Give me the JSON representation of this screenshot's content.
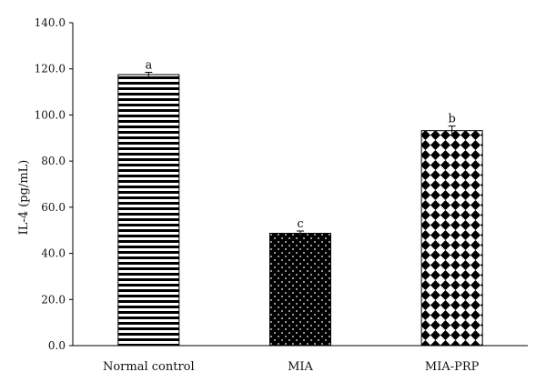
{
  "chart_data": {
    "type": "bar",
    "title": "",
    "xlabel": "",
    "ylabel": "IL-4 (pg/mL)",
    "ylim": [
      0,
      140
    ],
    "yticks": [
      "0.0",
      "20.0",
      "40.0",
      "60.0",
      "80.0",
      "100.0",
      "120.0",
      "140.0"
    ],
    "grid": false,
    "categories": [
      "Normal control",
      "MIA",
      "MIA-PRP"
    ],
    "values": [
      117.5,
      48.7,
      93.2
    ],
    "errors": [
      1.0,
      1.0,
      2.0
    ],
    "significance_letters": [
      "a",
      "c",
      "b"
    ],
    "bar_patterns": [
      "horizontal-stripes",
      "dots-on-black",
      "diamond-checker"
    ],
    "colors": {
      "bar_fill_dark": "#000000",
      "bar_fill_light": "#ffffff",
      "axis": "#000000"
    }
  }
}
